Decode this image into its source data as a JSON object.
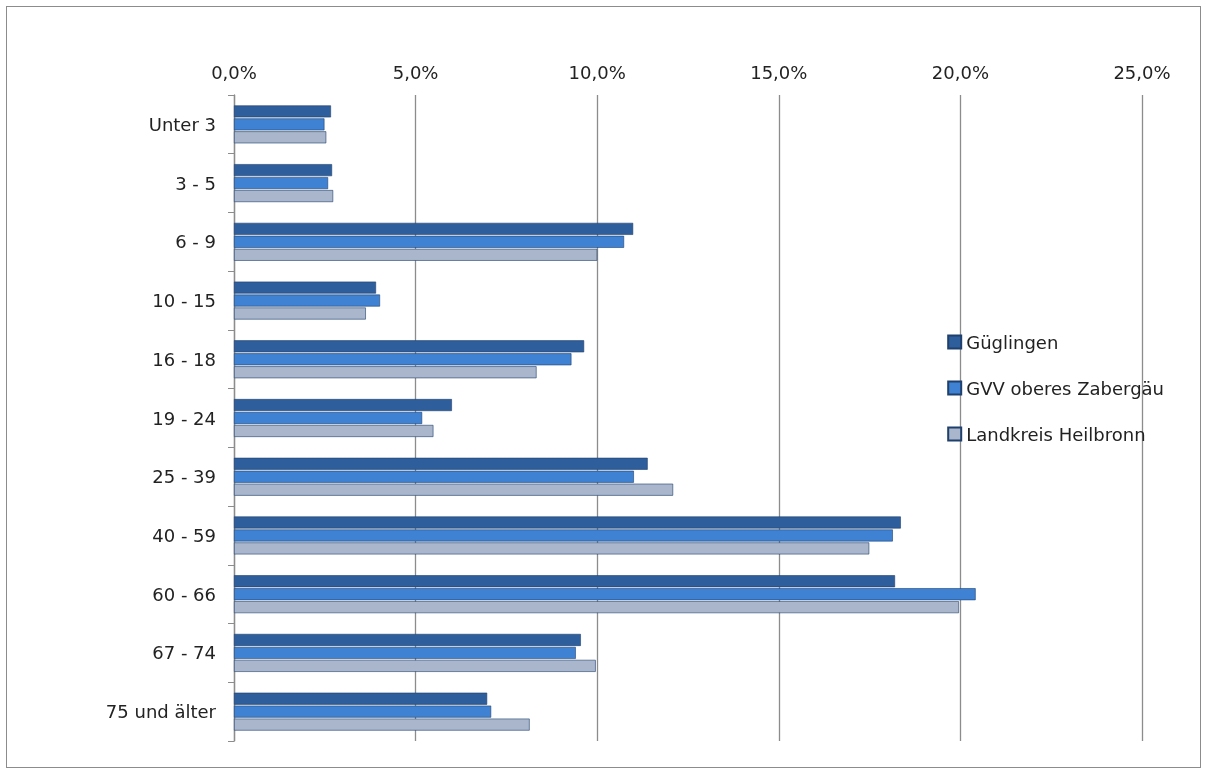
{
  "chart_data": {
    "type": "bar",
    "orientation": "horizontal",
    "categories": [
      "Unter 3",
      "3 - 5",
      "6 - 9",
      "10 - 15",
      "16 - 18",
      "19 - 24",
      "25 - 39",
      "40 - 59",
      "60 - 66",
      "67 - 74",
      "75 und älter"
    ],
    "series": [
      {
        "name": "Güglingen",
        "color": "#2f5e9c",
        "values": [
          2.67,
          2.7,
          10.99,
          3.91,
          9.64,
          6.0,
          11.39,
          18.36,
          18.2,
          9.55,
          6.97
        ]
      },
      {
        "name": "GVV oberes Zabergäu",
        "color": "#3f82d4",
        "values": [
          2.49,
          2.59,
          10.74,
          4.02,
          9.29,
          5.18,
          11.01,
          18.14,
          20.42,
          9.41,
          7.08
        ]
      },
      {
        "name": "Landkreis Heilbronn",
        "color": "#a9b6cc",
        "values": [
          2.54,
          2.73,
          10.0,
          3.63,
          8.33,
          5.49,
          12.09,
          17.49,
          19.96,
          9.96,
          8.14
        ]
      }
    ],
    "xlim": [
      0,
      25
    ],
    "xticks": [
      {
        "value": 0,
        "label": "0,0%"
      },
      {
        "value": 5,
        "label": "5,0%"
      },
      {
        "value": 10,
        "label": "10,0%"
      },
      {
        "value": 15,
        "label": "15,0%"
      },
      {
        "value": 20,
        "label": "20,0%"
      },
      {
        "value": 25,
        "label": "25,0%"
      }
    ],
    "grid": "x",
    "legend": "right"
  }
}
